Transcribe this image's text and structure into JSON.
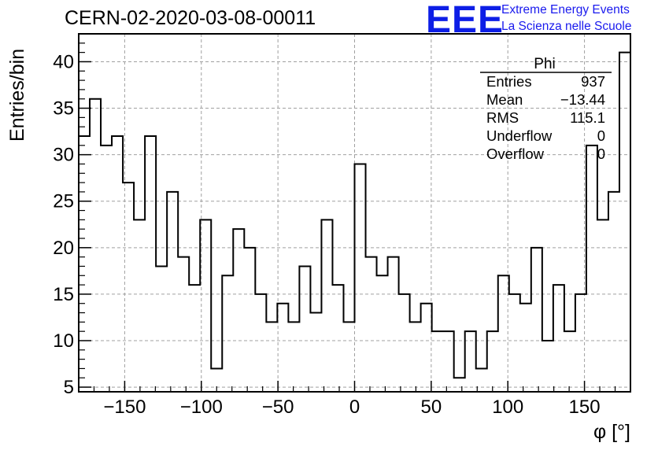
{
  "header": {
    "title": "CERN-02-2020-03-08-00011",
    "logo_text": "EEE",
    "logo_line1": "Extreme Energy Events",
    "logo_line2": "La Scienza nelle Scuole",
    "logo_color": "#0d1ee6"
  },
  "stats": {
    "title": "Phi",
    "rows": [
      {
        "label": "Entries",
        "value": "937"
      },
      {
        "label": "Mean",
        "value": "−13.44"
      },
      {
        "label": "RMS",
        "value": "115.1"
      },
      {
        "label": "Underflow",
        "value": "0"
      },
      {
        "label": "Overflow",
        "value": "0"
      }
    ]
  },
  "chart_data": {
    "type": "bar",
    "style": "step-histogram",
    "xlabel": "φ [°]",
    "ylabel": "Entries/bin",
    "xlim": [
      -180,
      180
    ],
    "ylim": [
      4.5,
      43
    ],
    "bin_width": 7.2,
    "bin_low_edges": [
      -180,
      -172.8,
      -165.6,
      -158.4,
      -151.2,
      -144,
      -136.8,
      -129.6,
      -122.4,
      -115.2,
      -108,
      -100.8,
      -93.6,
      -86.4,
      -79.2,
      -72,
      -64.8,
      -57.6,
      -50.4,
      -43.2,
      -36,
      -28.8,
      -21.6,
      -14.4,
      -7.2,
      0,
      7.2,
      14.4,
      21.6,
      28.8,
      36,
      43.2,
      50.4,
      57.6,
      64.8,
      72,
      79.2,
      86.4,
      93.6,
      100.8,
      108,
      115.2,
      122.4,
      129.6,
      136.8,
      144,
      151.2,
      158.4,
      165.6,
      172.8
    ],
    "values": [
      32,
      36,
      31,
      32,
      27,
      23,
      32,
      18,
      26,
      19,
      16,
      23,
      7,
      17,
      22,
      20,
      15,
      12,
      14,
      12,
      18,
      13,
      23,
      16,
      12,
      29,
      19,
      17,
      19,
      15,
      12,
      14,
      11,
      11,
      6,
      11,
      7,
      11,
      17,
      15,
      14,
      20,
      10,
      16,
      11,
      15,
      31,
      23,
      26,
      41
    ],
    "x_ticks": [
      -150,
      -100,
      -50,
      0,
      50,
      100,
      150
    ],
    "x_tick_labels": [
      "−150",
      "−100",
      "−50",
      "0",
      "50",
      "100",
      "150"
    ],
    "y_ticks": [
      5,
      10,
      15,
      20,
      25,
      30,
      35,
      40
    ],
    "y_tick_labels": [
      "5",
      "10",
      "15",
      "20",
      "25",
      "30",
      "35",
      "40"
    ],
    "grid": true,
    "line_color": "#000000",
    "grid_color": "#a0a0a0"
  }
}
